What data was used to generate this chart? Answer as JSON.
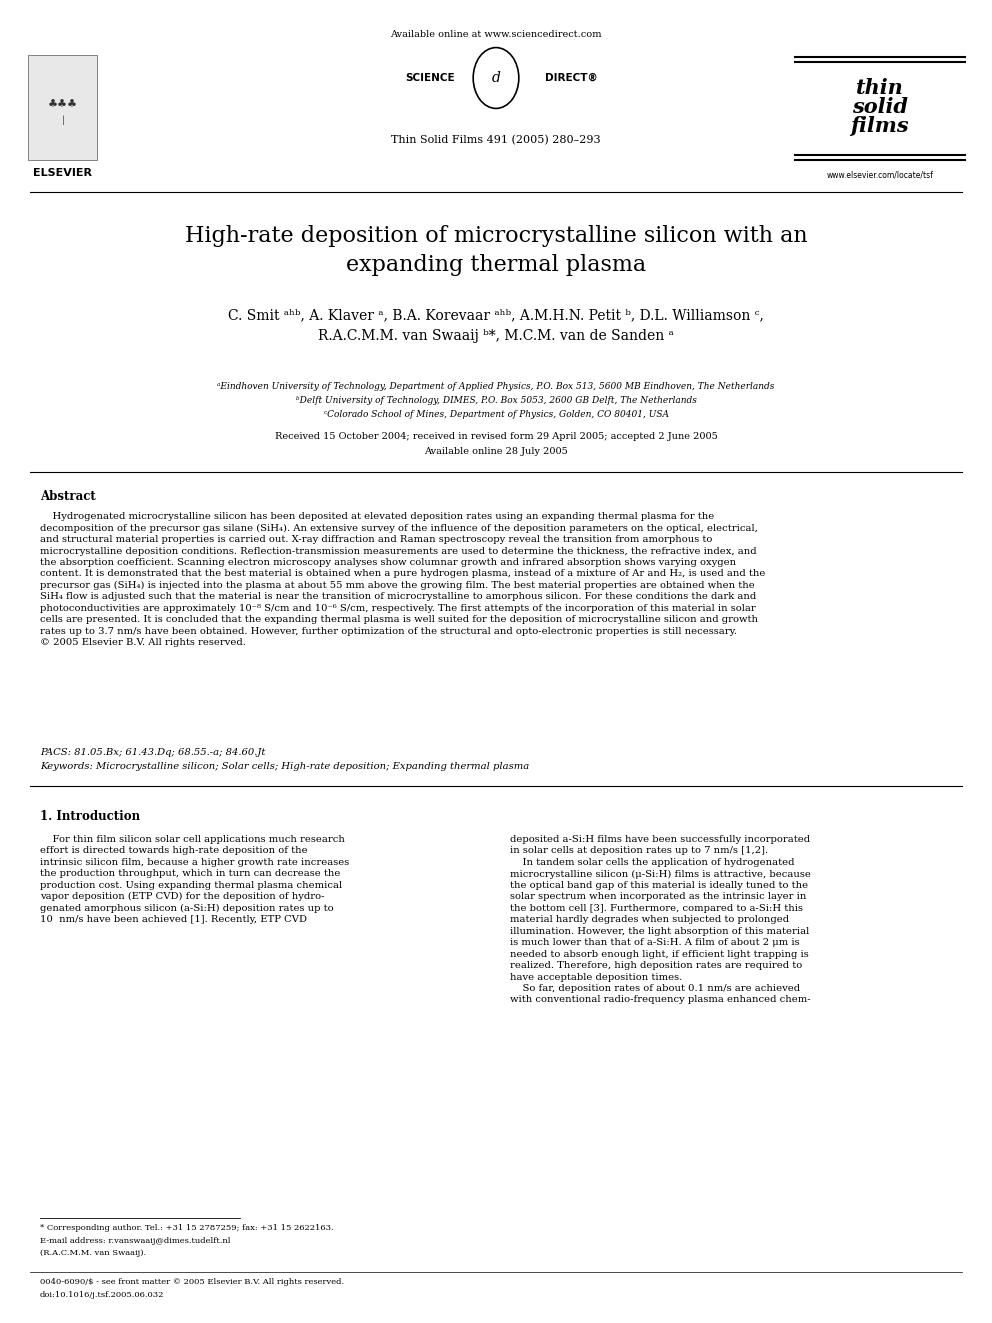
{
  "bg_color": "#ffffff",
  "page_width": 9.92,
  "page_height": 13.23,
  "header_available_online": "Available online at www.sciencedirect.com",
  "header_journal_info": "Thin Solid Films 491 (2005) 280–293",
  "header_elsevier_text": "ELSEVIER",
  "header_website": "www.elsevier.com/locate/tsf",
  "title": "High-rate deposition of microcrystalline silicon with an\nexpanding thermal plasma",
  "authors": "C. Smit ᵃʰᵇ, A. Klaver ᵃ, B.A. Korevaar ᵃʰᵇ, A.M.H.N. Petit ᵇ, D.L. Williamson ᶜ,\nR.A.C.M.M. van Swaaij ᵇ*, M.C.M. van de Sanden ᵃ",
  "affil_a": "ᵃEindhoven University of Technology, Department of Applied Physics, P.O. Box 513, 5600 MB Eindhoven, The Netherlands",
  "affil_b": "ᵇDelft University of Technology, DIMES, P.O. Box 5053, 2600 GB Delft, The Netherlands",
  "affil_c": "ᶜColorado School of Mines, Department of Physics, Golden, CO 80401, USA",
  "received": "Received 15 October 2004; received in revised form 29 April 2005; accepted 2 June 2005",
  "available": "Available online 28 July 2005",
  "abstract_title": "Abstract",
  "abstract_text": "    Hydrogenated microcrystalline silicon has been deposited at elevated deposition rates using an expanding thermal plasma for the\ndecomposition of the precursor gas silane (SiH₄). An extensive survey of the influence of the deposition parameters on the optical, electrical,\nand structural material properties is carried out. X-ray diffraction and Raman spectroscopy reveal the transition from amorphous to\nmicrocrystalline deposition conditions. Reflection-transmission measurements are used to determine the thickness, the refractive index, and\nthe absorption coefficient. Scanning electron microscopy analyses show columnar growth and infrared absorption shows varying oxygen\ncontent. It is demonstrated that the best material is obtained when a pure hydrogen plasma, instead of a mixture of Ar and H₂, is used and the\nprecursor gas (SiH₄) is injected into the plasma at about 55 mm above the growing film. The best material properties are obtained when the\nSiH₄ flow is adjusted such that the material is near the transition of microcrystalline to amorphous silicon. For these conditions the dark and\nphotoconductivities are approximately 10⁻⁸ S/cm and 10⁻⁶ S/cm, respectively. The first attempts of the incorporation of this material in solar\ncells are presented. It is concluded that the expanding thermal plasma is well suited for the deposition of microcrystalline silicon and growth\nrates up to 3.7 nm/s have been obtained. However, further optimization of the structural and opto-electronic properties is still necessary.\n© 2005 Elsevier B.V. All rights reserved.",
  "pacs": "PACS: 81.05.Bx; 61.43.Dq; 68.55.-a; 84.60.Jt",
  "keywords": "Keywords: Microcrystalline silicon; Solar cells; High-rate deposition; Expanding thermal plasma",
  "section1_title": "1. Introduction",
  "col1_text": "    For thin film silicon solar cell applications much research\neffort is directed towards high-rate deposition of the\nintrinsic silicon film, because a higher growth rate increases\nthe production throughput, which in turn can decrease the\nproduction cost. Using expanding thermal plasma chemical\nvapor deposition (ETP CVD) for the deposition of hydro-\ngenated amorphous silicon (a-Si:H) deposition rates up to\n10  nm/s have been achieved [1]. Recently, ETP CVD",
  "col2_text": "deposited a-Si:H films have been successfully incorporated\nin solar cells at deposition rates up to 7 nm/s [1,2].\n    In tandem solar cells the application of hydrogenated\nmicrocrystalline silicon (μ-Si:H) films is attractive, because\nthe optical band gap of this material is ideally tuned to the\nsolar spectrum when incorporated as the intrinsic layer in\nthe bottom cell [3]. Furthermore, compared to a-Si:H this\nmaterial hardly degrades when subjected to prolonged\nillumination. However, the light absorption of this material\nis much lower than that of a-Si:H. A film of about 2 μm is\nneeded to absorb enough light, if efficient light trapping is\nrealized. Therefore, high deposition rates are required to\nhave acceptable deposition times.\n    So far, deposition rates of about 0.1 nm/s are achieved\nwith conventional radio-frequency plasma enhanced chem-",
  "footnote_corr": "* Corresponding author. Tel.: +31 15 2787259; fax: +31 15 2622163.",
  "footnote_email": "E-mail address: r.vanswaaij@dimes.tudelft.nl",
  "footnote_racmm": "(R.A.C.M.M. van Swaaij).",
  "footnote_bottom1": "0040-6090/$ - see front matter © 2005 Elsevier B.V. All rights reserved.",
  "footnote_bottom2": "doi:10.1016/j.tsf.2005.06.032"
}
